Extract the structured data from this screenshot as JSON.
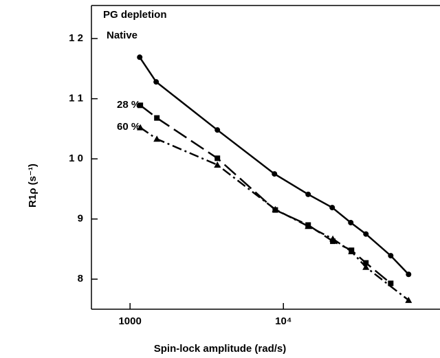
{
  "chart_data": {
    "type": "scatter",
    "log_x": true,
    "xlabel": "Spin-lock amplitude (rad/s)",
    "ylabel": "R1ρ (s⁻¹)",
    "annotations": [
      "PG depletion"
    ],
    "xlim": [
      560,
      105000
    ],
    "ylim": [
      7.5,
      12.55
    ],
    "xticks": [
      1000,
      {
        "value": 10000,
        "label": "10⁴"
      }
    ],
    "yticks": [
      8,
      9,
      {
        "value": 10,
        "label": "1 0"
      },
      {
        "value": 11,
        "label": "1 1"
      },
      {
        "value": 12,
        "label": "1 2"
      }
    ],
    "series": [
      {
        "name": "Native",
        "color": "#000000",
        "marker": "circle",
        "dash": "none",
        "x": [
          1156,
          1480,
          3711,
          8745,
          14500,
          20810,
          27500,
          34520,
          50100,
          65500
        ],
        "values": [
          11.69,
          11.28,
          10.48,
          9.75,
          9.41,
          9.19,
          8.94,
          8.75,
          8.39,
          8.08
        ]
      },
      {
        "name": "28 %",
        "color": "#000000",
        "marker": "square",
        "dash": "22 8",
        "x": [
          1167,
          1496,
          3711,
          8850,
          14500,
          21000,
          27800,
          34500,
          50100
        ],
        "values": [
          10.89,
          10.68,
          10.01,
          9.15,
          8.9,
          8.63,
          8.48,
          8.27,
          7.93
        ]
      },
      {
        "name": "60 %",
        "color": "#000000",
        "marker": "triangle",
        "dash": "14 5 3 5",
        "x": [
          1167,
          1496,
          3711,
          8850,
          14500,
          21000,
          27800,
          34500,
          65500
        ],
        "values": [
          10.52,
          10.33,
          9.9,
          9.16,
          8.88,
          8.67,
          8.46,
          8.2,
          7.65
        ]
      }
    ]
  }
}
